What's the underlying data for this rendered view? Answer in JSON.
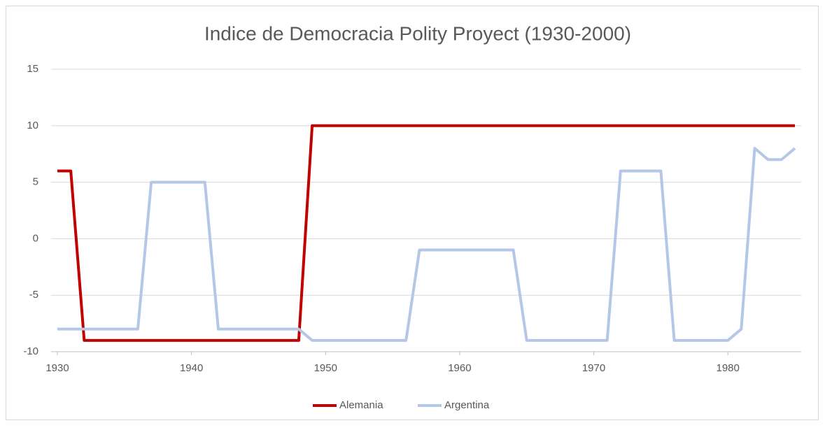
{
  "chart_data": {
    "type": "line",
    "title": "Indice de Democracia Polity Proyect (1930-2000)",
    "x": [
      1930,
      1931,
      1932,
      1933,
      1934,
      1935,
      1936,
      1937,
      1938,
      1939,
      1940,
      1941,
      1942,
      1943,
      1944,
      1945,
      1946,
      1947,
      1948,
      1949,
      1950,
      1951,
      1952,
      1953,
      1954,
      1955,
      1956,
      1957,
      1958,
      1959,
      1960,
      1961,
      1962,
      1963,
      1964,
      1965,
      1966,
      1967,
      1968,
      1969,
      1970,
      1971,
      1972,
      1973,
      1974,
      1975,
      1976,
      1977,
      1978,
      1979,
      1980,
      1981,
      1982,
      1983,
      1984,
      1985
    ],
    "series": [
      {
        "name": "Alemania",
        "color": "#c00000",
        "values": [
          6,
          6,
          -9,
          -9,
          -9,
          -9,
          -9,
          -9,
          -9,
          -9,
          -9,
          -9,
          -9,
          -9,
          -9,
          -9,
          -9,
          -9,
          -9,
          10,
          10,
          10,
          10,
          10,
          10,
          10,
          10,
          10,
          10,
          10,
          10,
          10,
          10,
          10,
          10,
          10,
          10,
          10,
          10,
          10,
          10,
          10,
          10,
          10,
          10,
          10,
          10,
          10,
          10,
          10,
          10,
          10,
          10,
          10,
          10,
          10
        ]
      },
      {
        "name": "Argentina",
        "color": "#b4c7e7",
        "values": [
          -8,
          -8,
          -8,
          -8,
          -8,
          -8,
          -8,
          5,
          5,
          5,
          5,
          5,
          -8,
          -8,
          -8,
          -8,
          -8,
          -8,
          -8,
          -9,
          -9,
          -9,
          -9,
          -9,
          -9,
          -9,
          -9,
          -1,
          -1,
          -1,
          -1,
          -1,
          -1,
          -1,
          -1,
          -9,
          -9,
          -9,
          -9,
          -9,
          -9,
          -9,
          6,
          6,
          6,
          6,
          -9,
          -9,
          -9,
          -9,
          -9,
          -8,
          8,
          7,
          7,
          8
        ]
      }
    ],
    "xlim": [
      1930,
      1985
    ],
    "xticks": [
      1930,
      1940,
      1950,
      1960,
      1970,
      1980
    ],
    "ylim": [
      -10,
      15
    ],
    "yticks": [
      -10,
      -5,
      0,
      5,
      10,
      15
    ],
    "grid": true,
    "legend": "bottom"
  }
}
